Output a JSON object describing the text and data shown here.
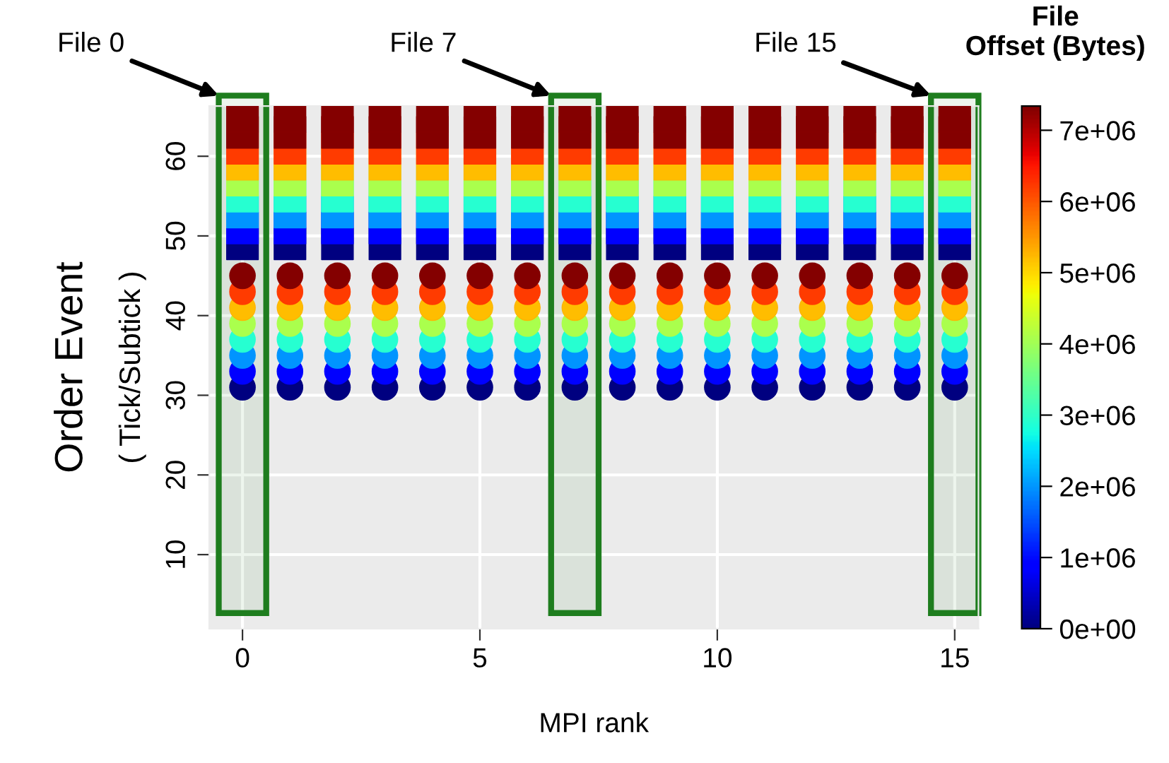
{
  "chart_data": {
    "type": "scatter",
    "xlabel": "MPI rank",
    "ylabel": "Order Event\n( Tick/Subtick )",
    "clabel": "File\nOffset (Bytes)",
    "xlim": [
      -0.7,
      15.5
    ],
    "ylim": [
      0.7,
      66.3
    ],
    "xticks": [
      0,
      5,
      10,
      15
    ],
    "yticks": [
      10,
      20,
      30,
      40,
      50,
      60
    ],
    "clim": [
      0,
      7340000
    ],
    "cticks": [
      {
        "value": 0,
        "label": "0e+00"
      },
      {
        "value": 1000000,
        "label": "1e+06"
      },
      {
        "value": 2000000,
        "label": "2e+06"
      },
      {
        "value": 3000000,
        "label": "3e+06"
      },
      {
        "value": 4000000,
        "label": "4e+06"
      },
      {
        "value": 5000000,
        "label": "5e+06"
      },
      {
        "value": 6000000,
        "label": "6e+06"
      },
      {
        "value": 7000000,
        "label": "7e+06"
      }
    ],
    "grid": true,
    "bands": [
      {
        "axis": "x",
        "from": -0.5,
        "to": 0.5,
        "label": "File 0",
        "color": "#1e7d1e"
      },
      {
        "axis": "x",
        "from": 6.5,
        "to": 7.5,
        "label": "File 7",
        "color": "#1e7d1e"
      },
      {
        "axis": "x",
        "from": 14.5,
        "to": 15.5,
        "label": "File 15",
        "color": "#1e7d1e"
      }
    ],
    "series": [
      {
        "marker": "square",
        "colors": [
          "#00007f",
          "#0000ff",
          "#0096ff",
          "#25ffd1",
          "#abff4b",
          "#ffb400",
          "#ff3a00",
          "#850000",
          "#850000",
          "#00007f",
          "#0000ff",
          "#0096ff",
          "#25ffd1",
          "#abff4b",
          "#ffb400",
          "#ff3a00",
          "#850000",
          "#850000",
          "#00007f",
          "#0000ff",
          "#0096ff",
          "#25ffd1",
          "#abff4b",
          "#ffb400",
          "#ff3a00",
          "#850000",
          "#850000",
          "#00007f",
          "#0000ff",
          "#0096ff",
          "#25ffd1",
          "#abff4b",
          "#ffb400",
          "#ff3a00",
          "#850000",
          "#850000",
          "#00007f",
          "#0000ff",
          "#0096ff",
          "#25ffd1",
          "#abff4b",
          "#ffb400",
          "#ff3a00",
          "#850000",
          "#850000",
          "#00007f",
          "#0000ff",
          "#0096ff",
          "#25ffd1",
          "#abff4b",
          "#ffb400",
          "#ff3a00",
          "#850000",
          "#850000",
          "#00007f",
          "#0000ff",
          "#0096ff",
          "#25ffd1",
          "#abff4b",
          "#ffb400",
          "#ff3a00",
          "#850000",
          "#850000",
          "#00007f",
          "#0000ff",
          "#0096ff",
          "#25ffd1",
          "#abff4b",
          "#ffb400",
          "#ff3a00",
          "#850000",
          "#850000",
          "#00007f",
          "#0000ff",
          "#0096ff",
          "#25ffd1",
          "#abff4b",
          "#ffb400",
          "#ff3a00",
          "#850000",
          "#850000",
          "#00007f",
          "#0000ff",
          "#0096ff",
          "#25ffd1",
          "#abff4b",
          "#ffb400",
          "#ff3a00",
          "#850000",
          "#850000",
          "#00007f",
          "#0000ff",
          "#0096ff",
          "#25ffd1",
          "#abff4b",
          "#ffb400",
          "#ff3a00",
          "#850000",
          "#850000",
          "#00007f",
          "#0000ff",
          "#0096ff",
          "#25ffd1",
          "#abff4b",
          "#ffb400",
          "#ff3a00",
          "#850000",
          "#850000",
          "#00007f",
          "#0000ff",
          "#0096ff",
          "#25ffd1",
          "#abff4b",
          "#ffb400",
          "#ff3a00",
          "#850000",
          "#850000",
          "#00007f",
          "#0000ff",
          "#0096ff",
          "#25ffd1",
          "#abff4b",
          "#ffb400",
          "#ff3a00",
          "#850000",
          "#850000",
          "#00007f",
          "#0000ff",
          "#0096ff",
          "#25ffd1",
          "#abff4b",
          "#ffb400",
          "#ff3a00",
          "#850000",
          "#850000",
          "#00007f",
          "#0000ff",
          "#0096ff",
          "#25ffd1",
          "#abff4b",
          "#ffb400",
          "#ff3a00",
          "#850000",
          "#850000"
        ],
        "x": [
          0,
          0,
          0,
          0,
          0,
          0,
          0,
          0,
          0,
          1,
          1,
          1,
          1,
          1,
          1,
          1,
          1,
          1,
          2,
          2,
          2,
          2,
          2,
          2,
          2,
          2,
          2,
          3,
          3,
          3,
          3,
          3,
          3,
          3,
          3,
          3,
          4,
          4,
          4,
          4,
          4,
          4,
          4,
          4,
          4,
          5,
          5,
          5,
          5,
          5,
          5,
          5,
          5,
          5,
          6,
          6,
          6,
          6,
          6,
          6,
          6,
          6,
          6,
          7,
          7,
          7,
          7,
          7,
          7,
          7,
          7,
          7,
          8,
          8,
          8,
          8,
          8,
          8,
          8,
          8,
          8,
          9,
          9,
          9,
          9,
          9,
          9,
          9,
          9,
          9,
          10,
          10,
          10,
          10,
          10,
          10,
          10,
          10,
          10,
          11,
          11,
          11,
          11,
          11,
          11,
          11,
          11,
          11,
          12,
          12,
          12,
          12,
          12,
          12,
          12,
          12,
          12,
          13,
          13,
          13,
          13,
          13,
          13,
          13,
          13,
          13,
          14,
          14,
          14,
          14,
          14,
          14,
          14,
          14,
          14,
          15,
          15,
          15,
          15,
          15,
          15,
          15,
          15,
          15
        ],
        "values": [
          49,
          51,
          53,
          55,
          57,
          59,
          61,
          63,
          65,
          49,
          51,
          53,
          55,
          57,
          59,
          61,
          63,
          65,
          49,
          51,
          53,
          55,
          57,
          59,
          61,
          63,
          65,
          49,
          51,
          53,
          55,
          57,
          59,
          61,
          63,
          65,
          49,
          51,
          53,
          55,
          57,
          59,
          61,
          63,
          65,
          49,
          51,
          53,
          55,
          57,
          59,
          61,
          63,
          65,
          49,
          51,
          53,
          55,
          57,
          59,
          61,
          63,
          65,
          49,
          51,
          53,
          55,
          57,
          59,
          61,
          63,
          65,
          49,
          51,
          53,
          55,
          57,
          59,
          61,
          63,
          65,
          49,
          51,
          53,
          55,
          57,
          59,
          61,
          63,
          65,
          49,
          51,
          53,
          55,
          57,
          59,
          61,
          63,
          65,
          49,
          51,
          53,
          55,
          57,
          59,
          61,
          63,
          65,
          49,
          51,
          53,
          55,
          57,
          59,
          61,
          63,
          65,
          49,
          51,
          53,
          55,
          57,
          59,
          61,
          63,
          65,
          49,
          51,
          53,
          55,
          57,
          59,
          61,
          63,
          65,
          49,
          51,
          53,
          55,
          57,
          59,
          61,
          63,
          65
        ],
        "cvalues": [
          0,
          900000,
          2000000,
          2900000,
          4100000,
          5200000,
          6200000,
          7300000,
          7300000,
          0,
          900000,
          2000000,
          2900000,
          4100000,
          5200000,
          6200000,
          7300000,
          7300000,
          0,
          900000,
          2000000,
          2900000,
          4100000,
          5200000,
          6200000,
          7300000,
          7300000,
          0,
          900000,
          2000000,
          2900000,
          4100000,
          5200000,
          6200000,
          7300000,
          7300000,
          0,
          900000,
          2000000,
          2900000,
          4100000,
          5200000,
          6200000,
          7300000,
          7300000,
          0,
          900000,
          2000000,
          2900000,
          4100000,
          5200000,
          6200000,
          7300000,
          7300000,
          0,
          900000,
          2000000,
          2900000,
          4100000,
          5200000,
          6200000,
          7300000,
          7300000,
          0,
          900000,
          2000000,
          2900000,
          4100000,
          5200000,
          6200000,
          7300000,
          7300000,
          0,
          900000,
          2000000,
          2900000,
          4100000,
          5200000,
          6200000,
          7300000,
          7300000,
          0,
          900000,
          2000000,
          2900000,
          4100000,
          5200000,
          6200000,
          7300000,
          7300000,
          0,
          900000,
          2000000,
          2900000,
          4100000,
          5200000,
          6200000,
          7300000,
          7300000,
          0,
          900000,
          2000000,
          2900000,
          4100000,
          5200000,
          6200000,
          7300000,
          7300000,
          0,
          900000,
          2000000,
          2900000,
          4100000,
          5200000,
          6200000,
          7300000,
          7300000,
          0,
          900000,
          2000000,
          2900000,
          4100000,
          5200000,
          6200000,
          7300000,
          7300000,
          0,
          900000,
          2000000,
          2900000,
          4100000,
          5200000,
          6200000,
          7300000,
          7300000,
          0,
          900000,
          2000000,
          2900000,
          4100000,
          5200000,
          6200000,
          7300000,
          7300000
        ]
      },
      {
        "marker": "circle",
        "colors": [
          "#00007f",
          "#0000ff",
          "#0096ff",
          "#25ffd1",
          "#abff4b",
          "#ffb400",
          "#ff3a00",
          "#850000",
          "#00007f",
          "#0000ff",
          "#0096ff",
          "#25ffd1",
          "#abff4b",
          "#ffb400",
          "#ff3a00",
          "#850000",
          "#00007f",
          "#0000ff",
          "#0096ff",
          "#25ffd1",
          "#abff4b",
          "#ffb400",
          "#ff3a00",
          "#850000",
          "#00007f",
          "#0000ff",
          "#0096ff",
          "#25ffd1",
          "#abff4b",
          "#ffb400",
          "#ff3a00",
          "#850000",
          "#00007f",
          "#0000ff",
          "#0096ff",
          "#25ffd1",
          "#abff4b",
          "#ffb400",
          "#ff3a00",
          "#850000",
          "#00007f",
          "#0000ff",
          "#0096ff",
          "#25ffd1",
          "#abff4b",
          "#ffb400",
          "#ff3a00",
          "#850000",
          "#00007f",
          "#0000ff",
          "#0096ff",
          "#25ffd1",
          "#abff4b",
          "#ffb400",
          "#ff3a00",
          "#850000",
          "#00007f",
          "#0000ff",
          "#0096ff",
          "#25ffd1",
          "#abff4b",
          "#ffb400",
          "#ff3a00",
          "#850000",
          "#00007f",
          "#0000ff",
          "#0096ff",
          "#25ffd1",
          "#abff4b",
          "#ffb400",
          "#ff3a00",
          "#850000",
          "#00007f",
          "#0000ff",
          "#0096ff",
          "#25ffd1",
          "#abff4b",
          "#ffb400",
          "#ff3a00",
          "#850000",
          "#00007f",
          "#0000ff",
          "#0096ff",
          "#25ffd1",
          "#abff4b",
          "#ffb400",
          "#ff3a00",
          "#850000",
          "#00007f",
          "#0000ff",
          "#0096ff",
          "#25ffd1",
          "#abff4b",
          "#ffb400",
          "#ff3a00",
          "#850000",
          "#00007f",
          "#0000ff",
          "#0096ff",
          "#25ffd1",
          "#abff4b",
          "#ffb400",
          "#ff3a00",
          "#850000",
          "#00007f",
          "#0000ff",
          "#0096ff",
          "#25ffd1",
          "#abff4b",
          "#ffb400",
          "#ff3a00",
          "#850000",
          "#00007f",
          "#0000ff",
          "#0096ff",
          "#25ffd1",
          "#abff4b",
          "#ffb400",
          "#ff3a00",
          "#850000",
          "#00007f",
          "#0000ff",
          "#0096ff",
          "#25ffd1",
          "#abff4b",
          "#ffb400",
          "#ff3a00",
          "#850000"
        ],
        "x": [
          0,
          0,
          0,
          0,
          0,
          0,
          0,
          0,
          1,
          1,
          1,
          1,
          1,
          1,
          1,
          1,
          2,
          2,
          2,
          2,
          2,
          2,
          2,
          2,
          3,
          3,
          3,
          3,
          3,
          3,
          3,
          3,
          4,
          4,
          4,
          4,
          4,
          4,
          4,
          4,
          5,
          5,
          5,
          5,
          5,
          5,
          5,
          5,
          6,
          6,
          6,
          6,
          6,
          6,
          6,
          6,
          7,
          7,
          7,
          7,
          7,
          7,
          7,
          7,
          8,
          8,
          8,
          8,
          8,
          8,
          8,
          8,
          9,
          9,
          9,
          9,
          9,
          9,
          9,
          9,
          10,
          10,
          10,
          10,
          10,
          10,
          10,
          10,
          11,
          11,
          11,
          11,
          11,
          11,
          11,
          11,
          12,
          12,
          12,
          12,
          12,
          12,
          12,
          12,
          13,
          13,
          13,
          13,
          13,
          13,
          13,
          13,
          14,
          14,
          14,
          14,
          14,
          14,
          14,
          14,
          15,
          15,
          15,
          15,
          15,
          15,
          15,
          15
        ],
        "values": [
          31,
          33,
          35,
          37,
          39,
          41,
          43,
          45,
          31,
          33,
          35,
          37,
          39,
          41,
          43,
          45,
          31,
          33,
          35,
          37,
          39,
          41,
          43,
          45,
          31,
          33,
          35,
          37,
          39,
          41,
          43,
          45,
          31,
          33,
          35,
          37,
          39,
          41,
          43,
          45,
          31,
          33,
          35,
          37,
          39,
          41,
          43,
          45,
          31,
          33,
          35,
          37,
          39,
          41,
          43,
          45,
          31,
          33,
          35,
          37,
          39,
          41,
          43,
          45,
          31,
          33,
          35,
          37,
          39,
          41,
          43,
          45,
          31,
          33,
          35,
          37,
          39,
          41,
          43,
          45,
          31,
          33,
          35,
          37,
          39,
          41,
          43,
          45,
          31,
          33,
          35,
          37,
          39,
          41,
          43,
          45,
          31,
          33,
          35,
          37,
          39,
          41,
          43,
          45,
          31,
          33,
          35,
          37,
          39,
          41,
          43,
          45,
          31,
          33,
          35,
          37,
          39,
          41,
          43,
          45,
          31,
          33,
          35,
          37,
          39,
          41,
          43,
          45
        ],
        "cvalues": [
          0,
          900000,
          2000000,
          2900000,
          4100000,
          5200000,
          6200000,
          7300000,
          0,
          900000,
          2000000,
          2900000,
          4100000,
          5200000,
          6200000,
          7300000,
          0,
          900000,
          2000000,
          2900000,
          4100000,
          5200000,
          6200000,
          7300000,
          0,
          900000,
          2000000,
          2900000,
          4100000,
          5200000,
          6200000,
          7300000,
          0,
          900000,
          2000000,
          2900000,
          4100000,
          5200000,
          6200000,
          7300000,
          0,
          900000,
          2000000,
          2900000,
          4100000,
          5200000,
          6200000,
          7300000,
          0,
          900000,
          2000000,
          2900000,
          4100000,
          5200000,
          6200000,
          7300000,
          0,
          900000,
          2000000,
          2900000,
          4100000,
          5200000,
          6200000,
          7300000,
          0,
          900000,
          2000000,
          2900000,
          4100000,
          5200000,
          6200000,
          7300000,
          0,
          900000,
          2000000,
          2900000,
          4100000,
          5200000,
          6200000,
          7300000,
          0,
          900000,
          2000000,
          2900000,
          4100000,
          5200000,
          6200000,
          7300000,
          0,
          900000,
          2000000,
          2900000,
          4100000,
          5200000,
          6200000,
          7300000,
          0,
          900000,
          2000000,
          2900000,
          4100000,
          5200000,
          6200000,
          7300000,
          0,
          900000,
          2000000,
          2900000,
          4100000,
          5200000,
          6200000,
          7300000,
          0,
          900000,
          2000000,
          2900000,
          4100000,
          5200000,
          6200000,
          7300000,
          0,
          900000,
          2000000,
          2900000,
          4100000,
          5200000,
          6200000,
          7300000
        ]
      }
    ]
  }
}
